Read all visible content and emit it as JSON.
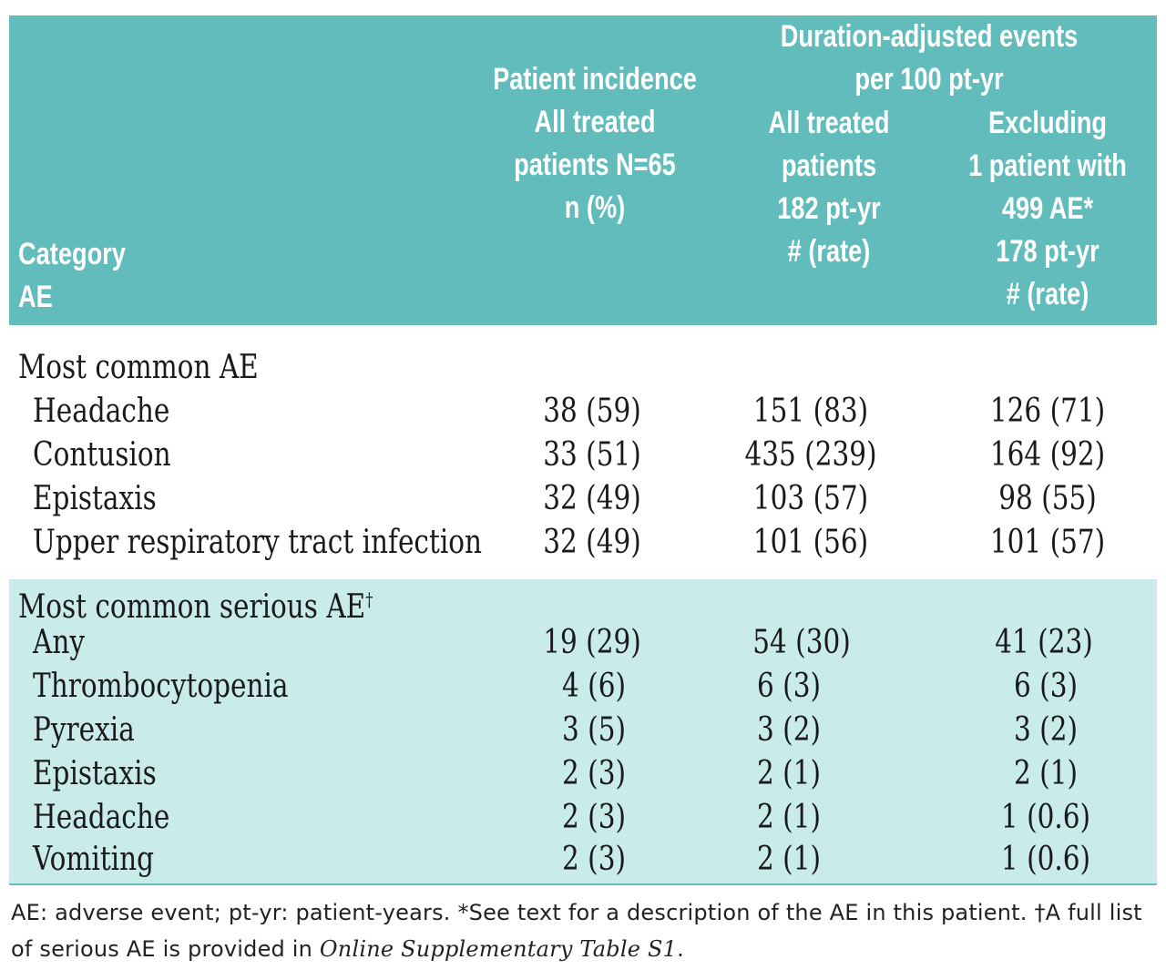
{
  "header": {
    "group_title_line1": "Duration-adjusted events",
    "group_title_line2": "per 100 pt-yr",
    "col_incidence": [
      "Patient incidence",
      "All treated",
      "patients N=65",
      "n (%)"
    ],
    "col_all_treated": [
      "All treated",
      "patients",
      "182 pt-yr",
      "# (rate)"
    ],
    "col_excluding": [
      "Excluding",
      "1 patient with",
      "499 AE*",
      "178 pt-yr",
      "# (rate)"
    ],
    "row_label": [
      "Category",
      "AE"
    ]
  },
  "sections": [
    {
      "title": "Most common AE",
      "rows": [
        {
          "label": "Headache",
          "incidence": "38 (59)",
          "all_treated": "151 (83)",
          "excluding": "126 (71)"
        },
        {
          "label": "Contusion",
          "incidence": "33 (51)",
          "all_treated": "435 (239)",
          "excluding": "164 (92)"
        },
        {
          "label": "Epistaxis",
          "incidence": "32 (49)",
          "all_treated": "103 (57)",
          "excluding": "98 (55)"
        },
        {
          "label": "Upper respiratory tract infection",
          "incidence": "32 (49)",
          "all_treated": "101 (56)",
          "excluding": "101 (57)"
        }
      ]
    },
    {
      "title": "Most common serious AE",
      "title_mark": "†",
      "rows": [
        {
          "label": "Any",
          "incidence": "19 (29)",
          "all_treated": "54 (30)",
          "excluding": "41 (23)"
        },
        {
          "label": "Thrombocytopenia",
          "incidence": "4 (6)",
          "all_treated": "6 (3)",
          "excluding": "6 (3)"
        },
        {
          "label": "Pyrexia",
          "incidence": "3 (5)",
          "all_treated": "3 (2)",
          "excluding": "3 (2)"
        },
        {
          "label": "Epistaxis",
          "incidence": "2 (3)",
          "all_treated": "2 (1)",
          "excluding": "2 (1)"
        },
        {
          "label": "Headache",
          "incidence": "2 (3)",
          "all_treated": "2 (1)",
          "excluding": "1 (0.6)"
        },
        {
          "label": "Vomiting",
          "incidence": "2 (3)",
          "all_treated": "2 (1)",
          "excluding": "1 (0.6)"
        }
      ]
    }
  ],
  "footnote": {
    "text": "AE: adverse event; pt-yr: patient-years. *See text for a description of the AE in this patient. †A full list of serious AE is provided in ",
    "ref": "Online Supplementary Table S1",
    "end": "."
  },
  "colors": {
    "header_bg": "#62bcbc",
    "serious_band_bg": "#c9ebea",
    "header_text": "#ffffff"
  }
}
